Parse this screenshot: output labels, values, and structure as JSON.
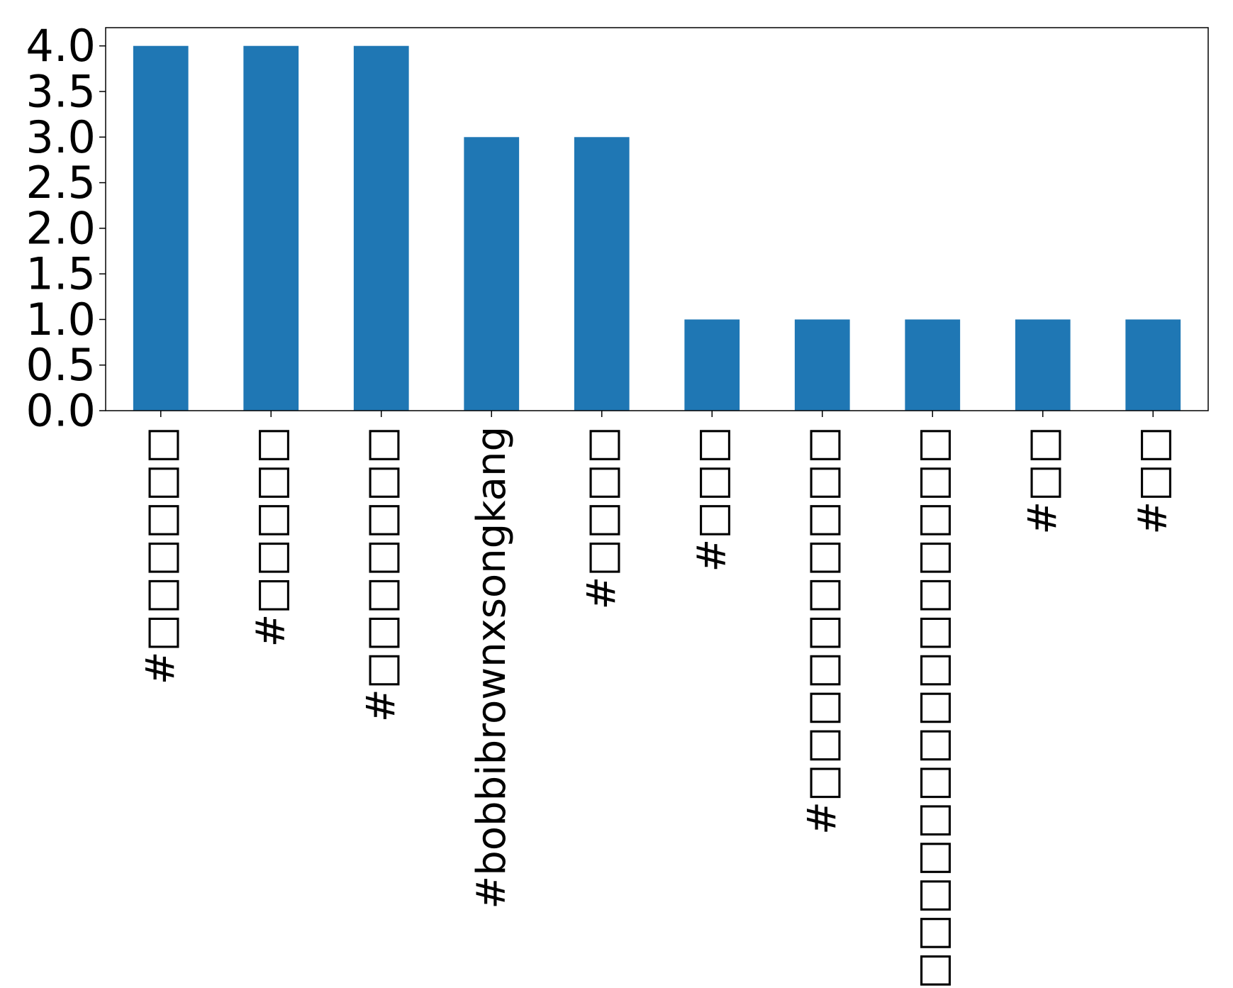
{
  "chart_data": {
    "type": "bar",
    "title": "",
    "xlabel": "",
    "ylabel": "",
    "categories": [
      "#□□□□□□",
      "#□□□□□",
      "#□□□□□□□",
      "#bobbibrownxsongkang",
      "#□□□□",
      "#□□□",
      "#□□□□□□□□□□",
      "#□□□□□□□□□□□□□□□",
      "#□□",
      "#□□"
    ],
    "values": [
      4,
      4,
      4,
      3,
      3,
      1,
      1,
      1,
      1,
      1
    ],
    "ylim": [
      0,
      4.2
    ],
    "yticks": [
      "0.0",
      "0.5",
      "1.0",
      "1.5",
      "2.0",
      "2.5",
      "3.0",
      "3.5",
      "4.0"
    ],
    "grid": false,
    "legend": "none",
    "bar_color": "#1f77b4"
  }
}
